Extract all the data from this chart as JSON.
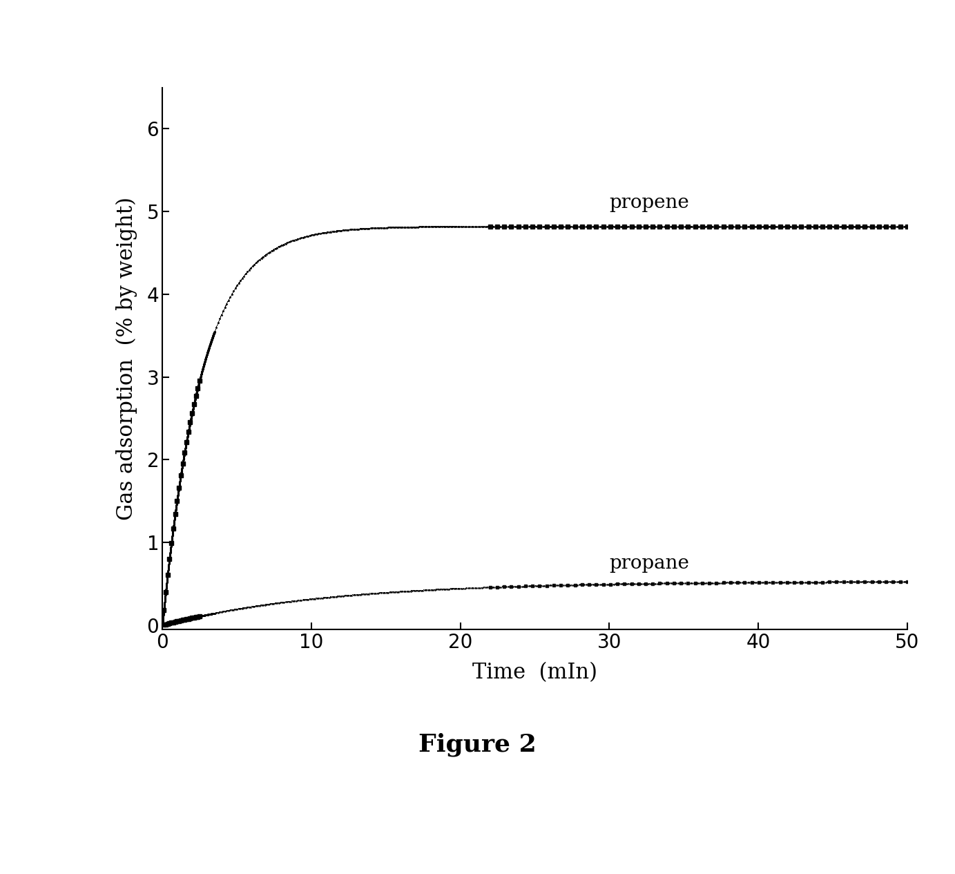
{
  "title": "Figure 2",
  "xlabel": "Time  (mIn)",
  "ylabel": "Gas adsorption  (% by weight)",
  "xlim": [
    0,
    50
  ],
  "ylim": [
    -0.05,
    6.5
  ],
  "yticks": [
    0,
    1,
    2,
    3,
    4,
    5,
    6
  ],
  "xticks": [
    0,
    10,
    20,
    30,
    40,
    50
  ],
  "propene_label": "propene",
  "propane_label": "propane",
  "propene_saturation": 4.82,
  "propane_saturation": 0.53,
  "propene_rate": 0.38,
  "propane_rate": 0.09,
  "background_color": "#ffffff",
  "line_color": "#000000",
  "label_fontsize": 22,
  "tick_fontsize": 20,
  "title_fontsize": 26,
  "annotation_fontsize": 20
}
